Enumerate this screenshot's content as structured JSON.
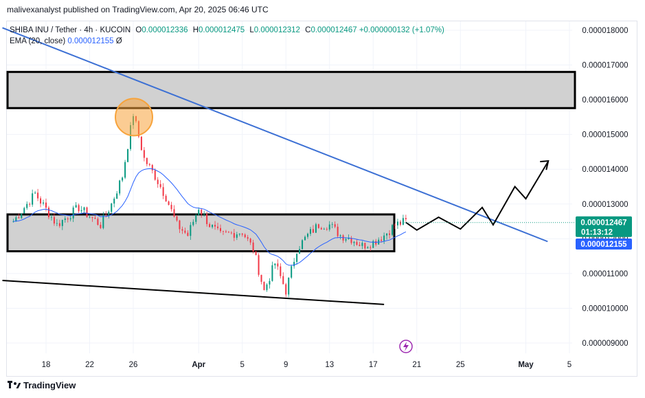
{
  "header": {
    "publisher_line": "malivexanalyst published on TradingView.com, Apr 20, 2025 06:46 UTC"
  },
  "legend": {
    "symbol": "SHIBA INU / Tether · 4h · KUCOIN",
    "o_label": "O",
    "o_value": "0.000012336",
    "h_label": "H",
    "h_value": "0.000012475",
    "l_label": "L",
    "l_value": "0.000012312",
    "c_label": "C",
    "c_value": "0.000012467",
    "change": "+0.000000132 (+1.07%)",
    "ema_label": "EMA (20, close)",
    "ema_value": "0.000012155",
    "ema_suffix": "Ø"
  },
  "footer": {
    "brand": "TradingView"
  },
  "colors": {
    "up": "#089981",
    "down": "#f23645",
    "ema": "#2962ff",
    "trendline": "#3b6fd4",
    "zone_fill": "#d1d1d1",
    "zone_border": "#000000",
    "highlight": "#f7a33b",
    "grid": "#f0f3fa"
  },
  "chart_data": {
    "type": "candlestick",
    "symbol": "SHIBA INU / Tether",
    "interval": "4h",
    "exchange": "KUCOIN",
    "ylim": [
      8.7e-06,
      1.84e-05
    ],
    "y_ticks": [
      "0.000018000",
      "0.000017000",
      "0.000016000",
      "0.000015000",
      "0.000014000",
      "0.000013000",
      "0.000012000",
      "0.000011000",
      "0.000010000",
      "0.000009000"
    ],
    "x_tick_labels": [
      "18",
      "22",
      "26",
      "Apr",
      "5",
      "9",
      "13",
      "17",
      "21",
      "25",
      "May",
      "5"
    ],
    "last_price": "0.000012467",
    "countdown": "01:13:12",
    "ema_label_value": "0.000012155",
    "price_path_keypoints": [
      [
        "Mar 15",
        1.25e-05
      ],
      [
        "Mar 17",
        1.33e-05
      ],
      [
        "Mar 19",
        1.24e-05
      ],
      [
        "Mar 21",
        1.29e-05
      ],
      [
        "Mar 23",
        1.24e-05
      ],
      [
        "Mar 24",
        1.3e-05
      ],
      [
        "Mar 25",
        1.38e-05
      ],
      [
        "Mar 26",
        1.56e-05
      ],
      [
        "Mar 27",
        1.43e-05
      ],
      [
        "Mar 28",
        1.38e-05
      ],
      [
        "Mar 29",
        1.32e-05
      ],
      [
        "Mar 30",
        1.24e-05
      ],
      [
        "Mar 31",
        1.21e-05
      ],
      [
        "Apr 1",
        1.29e-05
      ],
      [
        "Apr 2",
        1.24e-05
      ],
      [
        "Apr 3",
        1.21e-05
      ],
      [
        "Apr 5",
        1.22e-05
      ],
      [
        "Apr 6",
        1.17e-05
      ],
      [
        "Apr 7",
        1.05e-05
      ],
      [
        "Apr 8",
        1.13e-05
      ],
      [
        "Apr 9",
        1.05e-05
      ],
      [
        "Apr 10",
        1.17e-05
      ],
      [
        "Apr 11",
        1.21e-05
      ],
      [
        "Apr 12",
        1.24e-05
      ],
      [
        "Apr 13",
        1.24e-05
      ],
      [
        "Apr 14",
        1.21e-05
      ],
      [
        "Apr 15",
        1.2e-05
      ],
      [
        "Apr 16",
        1.18e-05
      ],
      [
        "Apr 17",
        1.19e-05
      ],
      [
        "Apr 18",
        1.21e-05
      ],
      [
        "Apr 19",
        1.24e-05
      ],
      [
        "Apr 20",
        1.25e-05
      ]
    ],
    "resistance_zone": [
      1.576e-05,
      1.68e-05
    ],
    "range_zone": [
      1.164e-05,
      1.27e-05
    ],
    "descending_trendline": [
      [
        "Mar 14",
        1.807e-05
      ],
      [
        "May 3",
        1.192e-05
      ]
    ],
    "lower_support_line": [
      [
        "Mar 14",
        1.08e-05
      ],
      [
        "Apr 18",
        1.011e-05
      ]
    ],
    "projected_path": [
      [
        "Apr 20",
        1.247e-05
      ],
      [
        "Apr 21",
        1.225e-05
      ],
      [
        "Apr 23",
        1.262e-05
      ],
      [
        "Apr 25",
        1.228e-05
      ],
      [
        "Apr 27",
        1.29e-05
      ],
      [
        "Apr 28",
        1.24e-05
      ],
      [
        "Apr 30",
        1.35e-05
      ],
      [
        "May 1",
        1.315e-05
      ],
      [
        "May 3",
        1.42e-05
      ]
    ],
    "highlighted_high": [
      "Mar 26",
      1.56e-05
    ]
  }
}
